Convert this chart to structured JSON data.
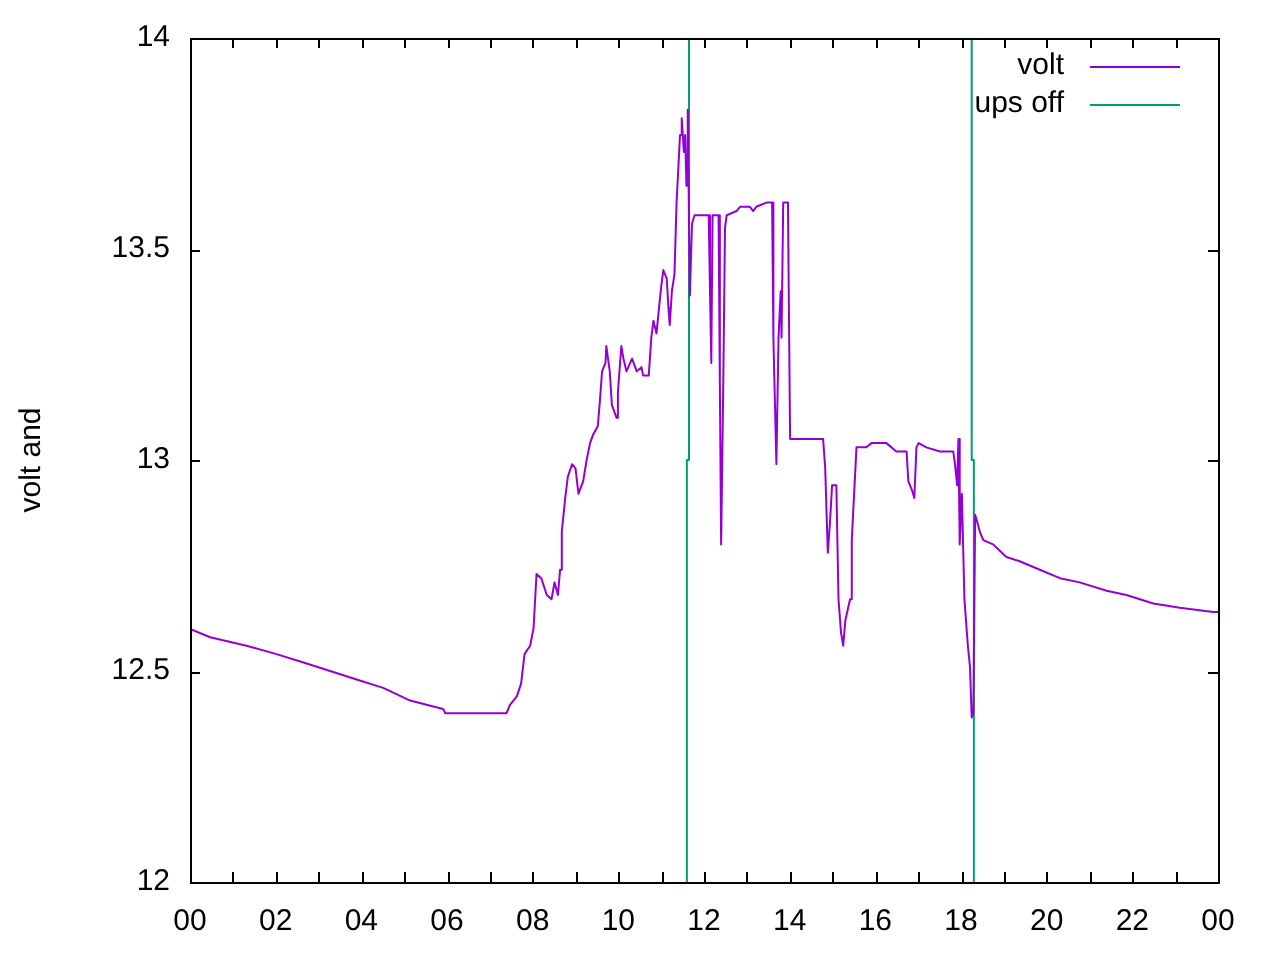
{
  "chart_data": {
    "type": "line",
    "ylabel": "volt and",
    "xlim": [
      0,
      24
    ],
    "xticks": [
      {
        "value": 0,
        "label": "00"
      },
      {
        "value": 1,
        "label": null
      },
      {
        "value": 2,
        "label": "02"
      },
      {
        "value": 3,
        "label": null
      },
      {
        "value": 4,
        "label": "04"
      },
      {
        "value": 5,
        "label": null
      },
      {
        "value": 6,
        "label": "06"
      },
      {
        "value": 7,
        "label": null
      },
      {
        "value": 8,
        "label": "08"
      },
      {
        "value": 9,
        "label": null
      },
      {
        "value": 10,
        "label": "10"
      },
      {
        "value": 11,
        "label": null
      },
      {
        "value": 12,
        "label": "12"
      },
      {
        "value": 13,
        "label": null
      },
      {
        "value": 14,
        "label": "14"
      },
      {
        "value": 15,
        "label": null
      },
      {
        "value": 16,
        "label": "16"
      },
      {
        "value": 17,
        "label": null
      },
      {
        "value": 18,
        "label": "18"
      },
      {
        "value": 19,
        "label": null
      },
      {
        "value": 20,
        "label": "20"
      },
      {
        "value": 21,
        "label": null
      },
      {
        "value": 22,
        "label": "22"
      },
      {
        "value": 23,
        "label": null
      },
      {
        "value": 24,
        "label": "00"
      }
    ],
    "ylim": [
      12,
      14
    ],
    "yticks": [
      12,
      12.5,
      13,
      13.5,
      14
    ],
    "legend": "top right",
    "series": [
      {
        "name": "volt",
        "color": "#9400d3",
        "x": [
          0,
          0.47,
          1.32,
          2.02,
          2.65,
          3.27,
          3.89,
          4.51,
          5.14,
          5.91,
          5.96,
          7.39,
          7.47,
          7.63,
          7.73,
          7.81,
          7.94,
          8.02,
          8.09,
          8.2,
          8.33,
          8.44,
          8.51,
          8.59,
          8.64,
          8.68,
          8.76,
          8.82,
          8.92,
          9,
          9.07,
          9.18,
          9.26,
          9.34,
          9.41,
          9.52,
          9.57,
          9.62,
          9.7,
          9.72,
          9.8,
          9.85,
          9.96,
          9.99,
          10.07,
          10.12,
          10.19,
          10.32,
          10.43,
          10.54,
          10.58,
          10.71,
          10.77,
          10.82,
          10.89,
          10.94,
          11,
          11.05,
          11.13,
          11.17,
          11.2,
          11.25,
          11.31,
          11.36,
          11.44,
          11.48,
          11.53,
          11.56,
          11.59,
          11.62,
          11.67,
          11.72,
          11.78,
          11.9,
          12.11,
          12.14,
          12.17,
          12.2,
          12.34,
          12.37,
          12.4,
          12.45,
          12.49,
          12.53,
          12.76,
          12.84,
          13.07,
          13.15,
          13.22,
          13.46,
          13.59,
          13.62,
          13.69,
          13.74,
          13.79,
          13.81,
          13.85,
          13.96,
          14.01,
          14.78,
          14.83,
          14.89,
          14.94,
          14.99,
          15.09,
          15.14,
          15.2,
          15.25,
          15.3,
          15.41,
          15.45,
          15.56,
          15.79,
          15.91,
          16.26,
          16.49,
          16.73,
          16.77,
          16.85,
          16.91,
          16.96,
          17.01,
          17.19,
          17.51,
          17.82,
          17.86,
          17.91,
          17.94,
          17.97,
          18.02,
          18.08,
          18.16,
          18.21,
          18.25,
          18.29,
          18.33,
          18.36,
          18.44,
          18.52,
          18.75,
          19.06,
          19.37,
          19.84,
          20.31,
          20.77,
          21.4,
          21.86,
          22.49,
          23.11,
          23.89,
          24
        ],
        "values": [
          12.6,
          12.58,
          12.56,
          12.54,
          12.52,
          12.5,
          12.48,
          12.46,
          12.43,
          12.41,
          12.4,
          12.4,
          12.42,
          12.44,
          12.47,
          12.54,
          12.56,
          12.6,
          12.73,
          12.72,
          12.68,
          12.67,
          12.71,
          12.68,
          12.74,
          12.83,
          12.91,
          12.96,
          12.99,
          12.98,
          12.92,
          12.95,
          13,
          13.04,
          13.06,
          13.08,
          13.14,
          13.21,
          13.23,
          13.27,
          13.21,
          13.13,
          13.1,
          13.16,
          13.27,
          13.24,
          13.21,
          13.24,
          13.21,
          13.22,
          13.2,
          13.2,
          13.29,
          13.33,
          13.3,
          13.35,
          13.41,
          13.45,
          13.43,
          13.36,
          13.32,
          13.4,
          13.44,
          13.61,
          13.77,
          13.81,
          13.73,
          13.77,
          13.65,
          13.83,
          13.39,
          13.56,
          13.58,
          13.58,
          13.58,
          13.4,
          13.23,
          13.58,
          13.58,
          13.18,
          12.8,
          13.18,
          13.55,
          13.58,
          13.59,
          13.6,
          13.6,
          13.59,
          13.6,
          13.61,
          13.61,
          13.29,
          12.99,
          13.29,
          13.4,
          13.29,
          13.61,
          13.61,
          13.05,
          13.05,
          12.98,
          12.78,
          12.85,
          12.94,
          12.94,
          12.67,
          12.59,
          12.56,
          12.62,
          12.67,
          12.81,
          13.03,
          13.03,
          13.04,
          13.04,
          13.02,
          13.02,
          12.95,
          12.93,
          12.91,
          13.03,
          13.04,
          13.03,
          13.02,
          13.02,
          12.99,
          12.94,
          13.05,
          12.8,
          12.92,
          12.67,
          12.56,
          12.51,
          12.39,
          12.4,
          12.87,
          12.86,
          12.83,
          12.81,
          12.8,
          12.77,
          12.76,
          12.74,
          12.72,
          12.71,
          12.69,
          12.68,
          12.66,
          12.65,
          12.64,
          12.64
        ]
      },
      {
        "name": "ups off",
        "color": "#009e73",
        "x": [
          11.6,
          11.6,
          11.65,
          11.65,
          15,
          18.25,
          18.25,
          18.3,
          18.3
        ],
        "values": [
          12,
          13,
          13,
          14,
          null,
          14,
          13,
          13,
          12
        ]
      }
    ]
  }
}
